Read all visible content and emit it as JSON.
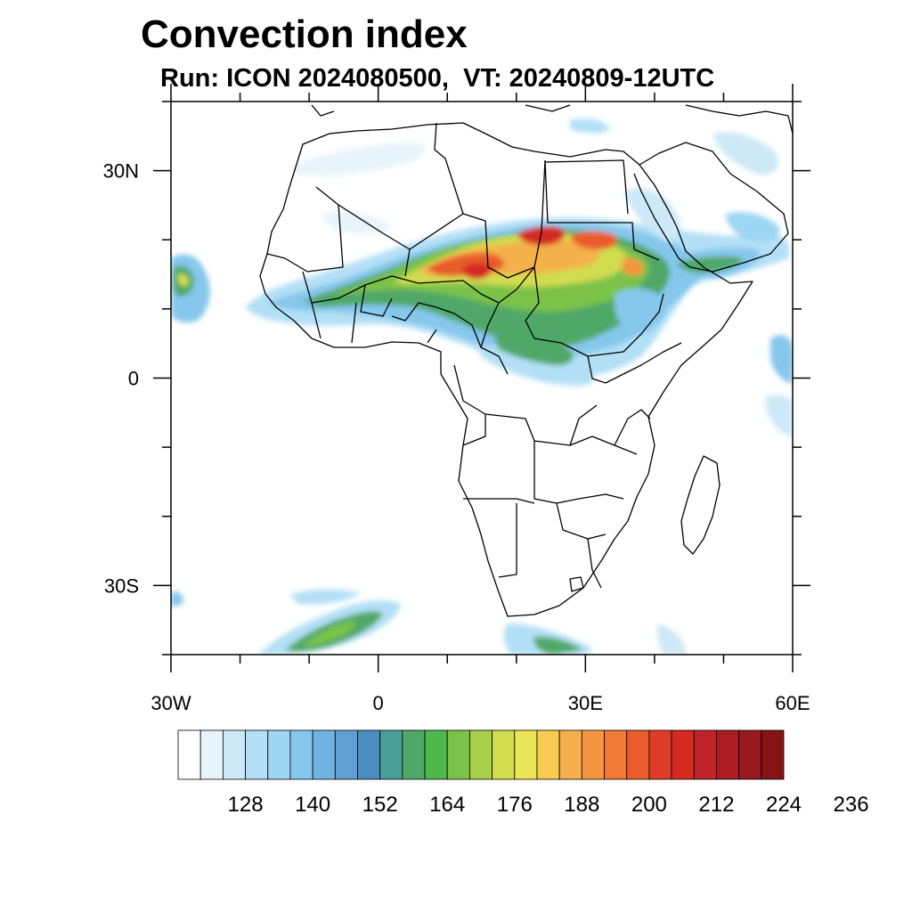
{
  "title": "Convection index",
  "subtitle": "Run: ICON 2024080500,  VT: 20240809-12UTC",
  "map": {
    "lon_range": [
      -30,
      60
    ],
    "lat_range": [
      -40,
      40
    ],
    "lat_ticks": [
      {
        "value": 30,
        "label": "30N"
      },
      {
        "value": 0,
        "label": "0"
      },
      {
        "value": -30,
        "label": "30S"
      }
    ],
    "lon_ticks": [
      {
        "value": -30,
        "label": "30W"
      },
      {
        "value": 0,
        "label": "0"
      },
      {
        "value": 30,
        "label": "30E"
      },
      {
        "value": 60,
        "label": "60E"
      }
    ]
  },
  "colorbar": {
    "colors": [
      "#ffffff",
      "#e8f4fb",
      "#cde9f7",
      "#b3e0f6",
      "#9cd6f3",
      "#86c7ec",
      "#6fb3e2",
      "#5e9fd4",
      "#4a8fc0",
      "#4a9e9a",
      "#4fa868",
      "#4fb84c",
      "#7cc24a",
      "#a8cf4a",
      "#d2dc4f",
      "#ece457",
      "#f8cc52",
      "#f4b04c",
      "#f49640",
      "#f07a36",
      "#e95c2c",
      "#de3c26",
      "#d42a24",
      "#c0232a",
      "#ac1d22",
      "#981a1e",
      "#861417"
    ],
    "labels": [
      "128",
      "140",
      "152",
      "164",
      "176",
      "188",
      "200",
      "212",
      "224",
      "236"
    ]
  }
}
